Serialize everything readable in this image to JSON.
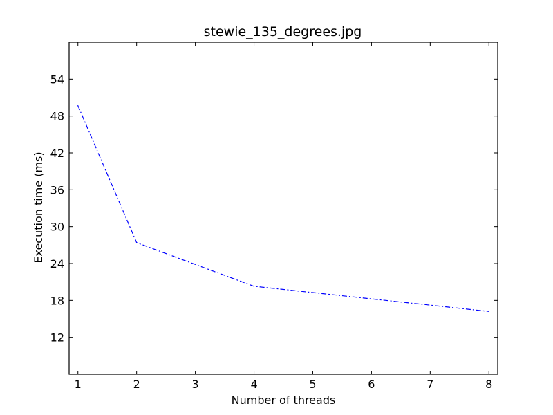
{
  "chart_data": {
    "type": "line",
    "title": "stewie_135_degrees.jpg",
    "xlabel": "Number of threads",
    "ylabel": "Execution time (ms)",
    "xlim": [
      0.85,
      8.15
    ],
    "ylim": [
      6,
      60
    ],
    "xticks": [
      1,
      2,
      3,
      4,
      5,
      6,
      7,
      8
    ],
    "yticks": [
      12,
      18,
      24,
      30,
      36,
      42,
      48,
      54
    ],
    "grid": false,
    "legend": "none",
    "series": [
      {
        "color": "#0000ff",
        "line_style": "dash-dot",
        "x": [
          1,
          2,
          4,
          8
        ],
        "y": [
          49.7,
          27.4,
          20.3,
          16.2
        ]
      }
    ]
  }
}
